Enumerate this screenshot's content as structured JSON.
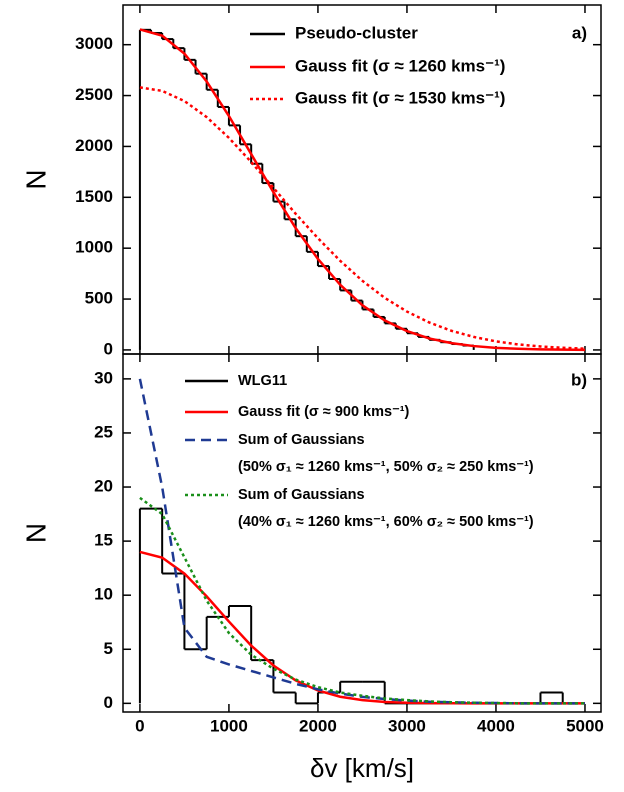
{
  "chart_data": [
    {
      "type": "histogram",
      "annotation": "a)",
      "ylabel": "N",
      "xlim": [
        -190,
        5180
      ],
      "ylim": [
        -40,
        3390
      ],
      "xticks": [
        0,
        1000,
        2000,
        3000,
        4000,
        5000
      ],
      "yticks": [
        0,
        500,
        1000,
        1500,
        2000,
        2500,
        3000
      ],
      "bins": [
        0,
        125,
        250,
        375,
        500,
        625,
        750,
        875,
        1000,
        1125,
        1250,
        1375,
        1500,
        1625,
        1750,
        1875,
        2000,
        2125,
        2250,
        2375,
        2500,
        2625,
        2750,
        2875,
        3000,
        3125,
        3250,
        3375,
        3500,
        3625,
        3750
      ],
      "series": [
        {
          "name": "Pseudo-cluster",
          "color": "#000000",
          "values": [
            3146,
            3115,
            3055,
            2966,
            2851,
            2715,
            2557,
            2388,
            2207,
            2021,
            1830,
            1640,
            1458,
            1284,
            1118,
            964,
            824,
            697,
            585,
            485,
            398,
            324,
            261,
            208,
            164,
            128,
            99,
            76,
            58,
            43
          ]
        }
      ],
      "lines": {
        "type": "line",
        "x": [
          0,
          250,
          500,
          750,
          1000,
          1250,
          1500,
          1750,
          2000,
          2250,
          2500,
          2750,
          3000,
          3250,
          3500,
          3750,
          4000,
          4250,
          4500,
          4750,
          5000
        ],
        "series": [
          {
            "name": "Gauss fit (σ ≈ 1260 kms⁻¹)",
            "color": "#ff0000",
            "dash": "solid",
            "values": [
              3150,
              3089,
              2912,
              2638,
              2299,
              1925,
              1550,
              1197,
              894,
              640,
              439,
              290,
              185,
              113,
              67,
              38,
              20,
              11,
              5,
              3,
              1
            ]
          },
          {
            "name": "Gauss fit (σ ≈ 1530 kms⁻¹)",
            "color": "#ff0000",
            "dash": "dotted",
            "values": [
              2580,
              2546,
              2446,
              2288,
              2084,
              1847,
              1593,
              1338,
              1098,
              876,
              679,
              512,
              377,
              270,
              188,
              128,
              84,
              54,
              34,
              21,
              12
            ]
          }
        ]
      }
    },
    {
      "type": "histogram",
      "annotation": "b)",
      "ylabel": "N",
      "xlabel": "δv [km/s]",
      "xlim": [
        -190,
        5180
      ],
      "ylim": [
        -0.8,
        32.3
      ],
      "xticks": [
        0,
        1000,
        2000,
        3000,
        4000,
        5000
      ],
      "yticks": [
        0,
        5,
        10,
        15,
        20,
        25,
        30
      ],
      "bins": [
        0,
        250,
        500,
        750,
        1000,
        1250,
        1500,
        1750,
        2000,
        2250,
        2500,
        2750,
        3000,
        3250,
        3500,
        3750,
        4000,
        4250,
        4500,
        4750,
        5000
      ],
      "series": [
        {
          "name": "WLG11",
          "color": "#000000",
          "values": [
            18,
            12,
            5,
            8,
            9,
            4,
            1,
            0,
            1,
            2,
            2,
            0,
            0,
            0,
            0,
            0,
            0,
            0,
            1,
            0
          ]
        }
      ],
      "lines": {
        "type": "line",
        "x": [
          0,
          250,
          500,
          750,
          1000,
          1250,
          1500,
          1750,
          2000,
          2250,
          2500,
          2750,
          3000,
          3250,
          3500,
          3750,
          4000,
          4250,
          4500,
          4750,
          5000
        ],
        "series": [
          {
            "name": "Gauss fit (σ ≈ 900 kms⁻¹)",
            "color": "#ff0000",
            "dash": "solid",
            "values": [
              14,
              13.47,
              12.0,
              9.89,
              7.56,
              5.34,
              3.5,
              2.12,
              1.19,
              0.61,
              0.3,
              0.13,
              0.05,
              0.02,
              0.01,
              0,
              0,
              0,
              0,
              0,
              0
            ]
          },
          {
            "name": "Sum of Gaussians",
            "description": "(50% σ₁ ≈ 1260 kms⁻¹, 50% σ₂ ≈ 250 kms⁻¹)",
            "color": "#1f3a93",
            "dash": "dashed",
            "values": [
              30,
              20,
              7,
              4.3,
              3.6,
              3.0,
              2.4,
              1.8,
              1.3,
              0.9,
              0.6,
              0.4,
              0.25,
              0.15,
              0.1,
              0.05,
              0.03,
              0,
              0,
              0,
              0
            ]
          },
          {
            "name": "Sum of Gaussians",
            "description": "(40% σ₁ ≈ 1260 kms⁻¹, 60% σ₂ ≈ 500 kms⁻¹)",
            "color": "#1a8f1a",
            "dash": "dotted",
            "values": [
              19,
              17.5,
              13.5,
              9.5,
              6.5,
              4.5,
              3.2,
              2.2,
              1.5,
              1.0,
              0.7,
              0.45,
              0.3,
              0.18,
              0.1,
              0.06,
              0.03,
              0,
              0,
              0,
              0
            ]
          }
        ]
      }
    }
  ]
}
